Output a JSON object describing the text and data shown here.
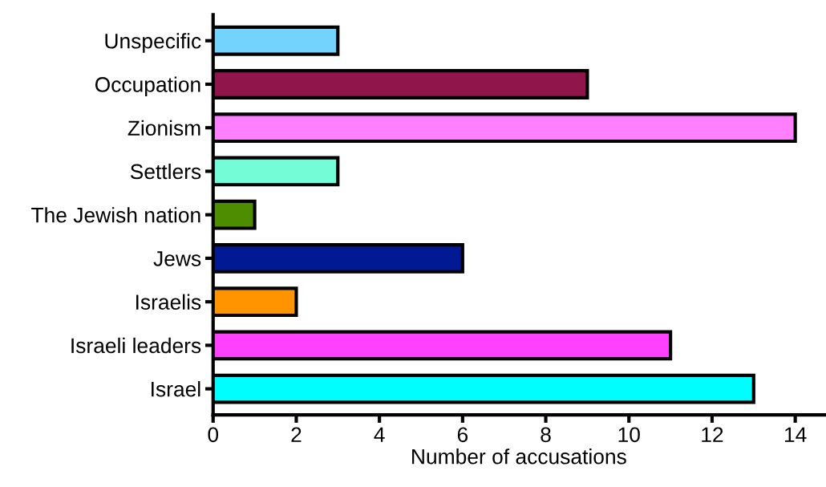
{
  "chart_data": {
    "type": "bar",
    "orientation": "horizontal",
    "xlabel": "Number of accusations",
    "categories": [
      "Unspecific",
      "Occupation",
      "Zionism",
      "Settlers",
      "The Jewish nation",
      "Jews",
      "Israelis",
      "Israeli leaders",
      "Israel"
    ],
    "values": [
      3,
      9,
      14,
      3,
      1,
      6,
      2,
      11,
      13
    ],
    "colors": [
      "#73d3fd",
      "#8f154b",
      "#fe80fe",
      "#73fcd6",
      "#4f8d00",
      "#011993",
      "#ff9300",
      "#ff40ff",
      "#00fdff"
    ],
    "xlim": [
      0,
      14.7
    ],
    "xticks": [
      0,
      2,
      4,
      6,
      8,
      10,
      12,
      14
    ],
    "grid": false,
    "legend": false
  }
}
